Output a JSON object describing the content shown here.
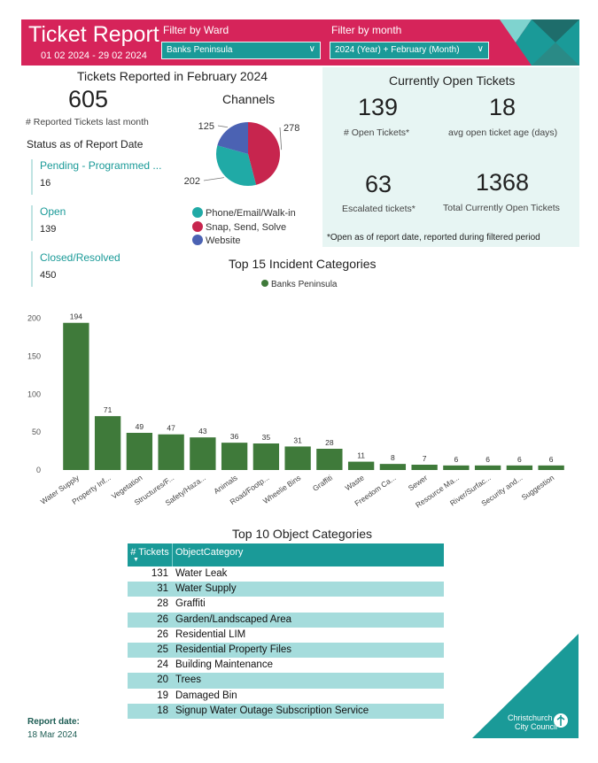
{
  "header": {
    "title": "Ticket Report",
    "date_range": "01 02 2024 - 29 02 2024",
    "ward_filter_label": "Filter by Ward",
    "ward_filter_value": "Banks Peninsula",
    "month_filter_label": "Filter by month",
    "month_filter_value": "2024 (Year) + February (Month)"
  },
  "reported": {
    "heading": "Tickets Reported in February 2024",
    "count": "605",
    "count_label": "# Reported Tickets last month"
  },
  "status": {
    "heading": "Status as of Report Date",
    "items": [
      {
        "label": "Pending - Programmed ...",
        "value": "16"
      },
      {
        "label": "Open",
        "value": "139"
      },
      {
        "label": "Closed/Resolved",
        "value": "450"
      }
    ]
  },
  "channels": {
    "heading": "Channels",
    "slices": [
      {
        "name": "Snap, Send, Solve",
        "value": 278,
        "label": "278",
        "color": "#c7254e"
      },
      {
        "name": "Phone/Email/Walk-in",
        "value": 202,
        "label": "202",
        "color": "#20aaa6"
      },
      {
        "name": "Website",
        "value": 125,
        "label": "125",
        "color": "#4b62b3"
      }
    ],
    "legend": [
      {
        "name": "Phone/Email/Walk-in",
        "color": "#20aaa6"
      },
      {
        "name": "Snap, Send, Solve",
        "color": "#c7254e"
      },
      {
        "name": "Website",
        "color": "#4b62b3"
      }
    ]
  },
  "open_tickets": {
    "heading": "Currently Open Tickets",
    "open_count": "139",
    "open_label": "# Open Tickets*",
    "avg_age": "18",
    "avg_age_label": "avg open ticket age (days)",
    "escalated": "63",
    "escalated_label": "Escalated tickets*",
    "total_open": "1368",
    "total_open_label": "Total Currently Open Tickets",
    "footnote": "*Open as of report date, reported during filtered period"
  },
  "chart_data": {
    "type": "bar",
    "title": "Top 15 Incident Categories",
    "legend": "Banks Peninsula",
    "color": "#3f7a3a",
    "categories": [
      "Water Supply",
      "Property Inf...",
      "Vegetation",
      "Structures/F...",
      "Safety/Haza...",
      "Animals",
      "Road/Footp...",
      "Wheelie Bins",
      "Graffiti",
      "Waste",
      "Freedom Ca...",
      "Sewer",
      "Resource Ma...",
      "River/Surfac...",
      "Security and...",
      "Suggestion"
    ],
    "values": [
      194,
      71,
      49,
      47,
      43,
      36,
      35,
      31,
      28,
      11,
      8,
      7,
      6,
      6,
      6,
      6
    ],
    "yticks": [
      0,
      50,
      100,
      150,
      200
    ],
    "ylim": [
      0,
      210
    ],
    "xlabel": "",
    "ylabel": ""
  },
  "object_table": {
    "heading": "Top 10 Object Categories",
    "col_tickets": "# Tickets",
    "col_category": "ObjectCategory",
    "sort_icon": "sort-down-icon",
    "rows": [
      {
        "n": "131",
        "cat": "Water Leak"
      },
      {
        "n": "31",
        "cat": "Water Supply"
      },
      {
        "n": "28",
        "cat": "Graffiti"
      },
      {
        "n": "26",
        "cat": "Garden/Landscaped Area"
      },
      {
        "n": "26",
        "cat": "Residential LIM"
      },
      {
        "n": "25",
        "cat": "Residential Property Files"
      },
      {
        "n": "24",
        "cat": "Building Maintenance"
      },
      {
        "n": "20",
        "cat": "Trees"
      },
      {
        "n": "19",
        "cat": "Damaged Bin"
      },
      {
        "n": "18",
        "cat": "Signup Water Outage Subscription Service"
      }
    ]
  },
  "footer": {
    "report_date_label": "Report date:",
    "report_date_value": "18 Mar 2024",
    "logo_line1": "Christchurch",
    "logo_line2": "City Council"
  },
  "colors": {
    "brand_pink": "#d6245a",
    "teal": "#1a9a98",
    "bar_green": "#3f7a3a",
    "panel_bg": "#e7f5f3"
  }
}
